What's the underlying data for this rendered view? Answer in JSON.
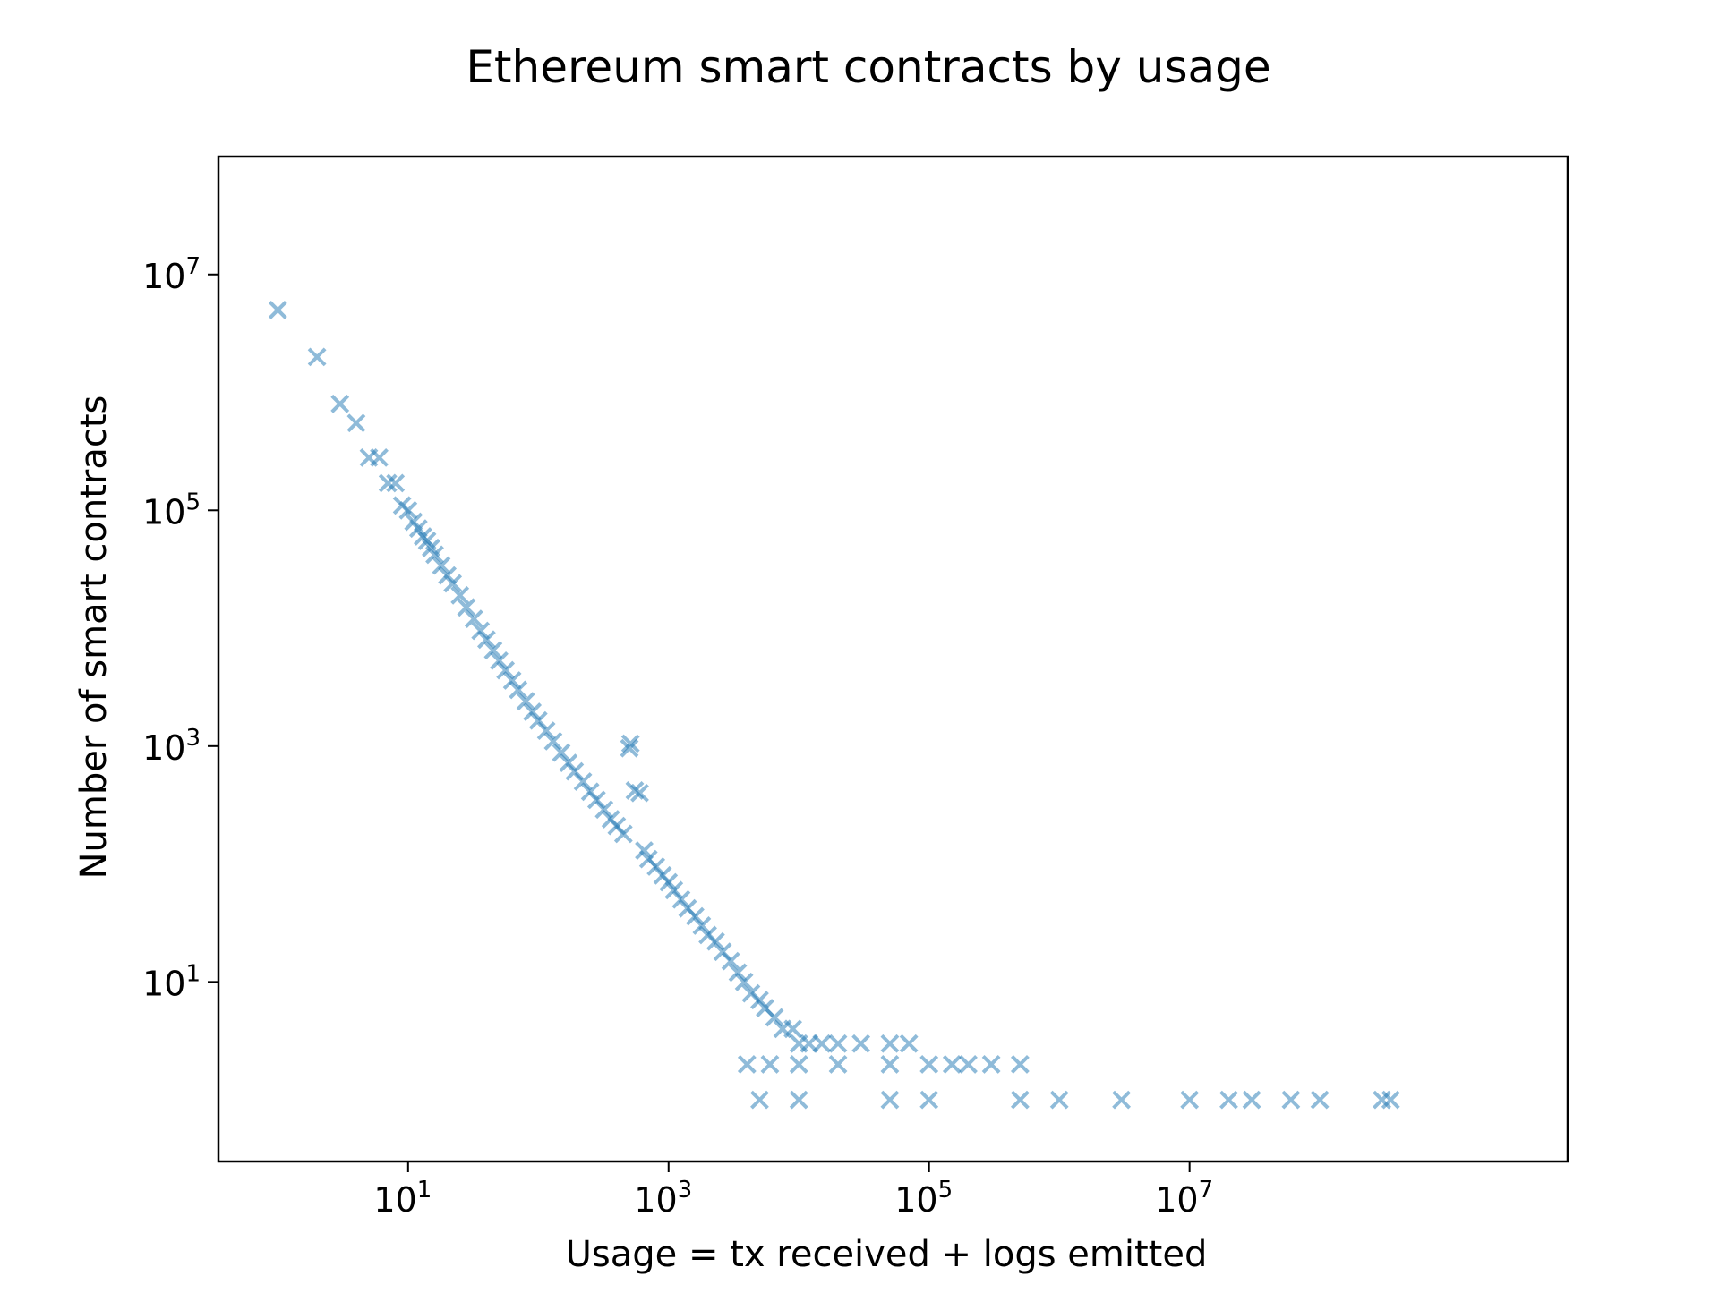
{
  "chart_data": {
    "type": "scatter",
    "title": "Ethereum smart contracts by usage",
    "xlabel": "Usage = tx received + logs emitted",
    "ylabel": "Number of smart contracts",
    "x_scale": "log",
    "y_scale": "log",
    "x_ticks": [
      {
        "base": "10",
        "exp": "1",
        "value": 10
      },
      {
        "base": "10",
        "exp": "3",
        "value": 1000
      },
      {
        "base": "10",
        "exp": "5",
        "value": 100000
      },
      {
        "base": "10",
        "exp": "7",
        "value": 10000000
      }
    ],
    "y_ticks": [
      {
        "base": "10",
        "exp": "1",
        "value": 10
      },
      {
        "base": "10",
        "exp": "3",
        "value": 1000
      },
      {
        "base": "10",
        "exp": "5",
        "value": 100000
      },
      {
        "base": "10",
        "exp": "7",
        "value": 10000000
      }
    ],
    "xlim": [
      0.35,
      8000000000
    ],
    "ylim": [
      0.3,
      100000000
    ],
    "grid": false,
    "marker": "x",
    "color": "#1f77b4",
    "series": [
      {
        "points": [
          [
            1,
            5000000
          ],
          [
            2,
            2000000
          ],
          [
            3,
            800000
          ],
          [
            4,
            550000
          ],
          [
            5,
            280000
          ],
          [
            6,
            280000
          ],
          [
            7,
            170000
          ],
          [
            8,
            170000
          ],
          [
            9,
            110000
          ],
          [
            10,
            100000
          ],
          [
            11,
            80000
          ],
          [
            12,
            70000
          ],
          [
            13,
            60000
          ],
          [
            14,
            55000
          ],
          [
            15,
            48000
          ],
          [
            16,
            42000
          ],
          [
            18,
            34000
          ],
          [
            20,
            28000
          ],
          [
            22,
            24000
          ],
          [
            25,
            19000
          ],
          [
            28,
            15000
          ],
          [
            32,
            12000
          ],
          [
            36,
            9500
          ],
          [
            40,
            8000
          ],
          [
            45,
            6500
          ],
          [
            50,
            5300
          ],
          [
            56,
            4400
          ],
          [
            63,
            3600
          ],
          [
            70,
            3000
          ],
          [
            80,
            2400
          ],
          [
            90,
            1950
          ],
          [
            100,
            1650
          ],
          [
            115,
            1350
          ],
          [
            130,
            1100
          ],
          [
            150,
            880
          ],
          [
            170,
            720
          ],
          [
            190,
            610
          ],
          [
            220,
            500
          ],
          [
            250,
            410
          ],
          [
            280,
            350
          ],
          [
            320,
            290
          ],
          [
            360,
            240
          ],
          [
            400,
            210
          ],
          [
            450,
            180
          ],
          [
            500,
            960
          ],
          [
            510,
            1050
          ],
          [
            550,
            420
          ],
          [
            600,
            400
          ],
          [
            650,
            130
          ],
          [
            700,
            110
          ],
          [
            800,
            95
          ],
          [
            900,
            80
          ],
          [
            1000,
            70
          ],
          [
            1100,
            60
          ],
          [
            1250,
            50
          ],
          [
            1400,
            42
          ],
          [
            1600,
            36
          ],
          [
            1800,
            30
          ],
          [
            2000,
            25
          ],
          [
            2300,
            22
          ],
          [
            2600,
            18
          ],
          [
            3000,
            15
          ],
          [
            3400,
            12
          ],
          [
            3800,
            10
          ],
          [
            4300,
            8
          ],
          [
            5000,
            7
          ],
          [
            5500,
            6
          ],
          [
            6500,
            5
          ],
          [
            7500,
            4
          ],
          [
            9000,
            4
          ],
          [
            10000,
            3
          ],
          [
            12000,
            3
          ],
          [
            15000,
            3
          ],
          [
            20000,
            3
          ],
          [
            30000,
            3
          ],
          [
            50000,
            3
          ],
          [
            70000,
            3
          ],
          [
            4000,
            2
          ],
          [
            6000,
            2
          ],
          [
            10000,
            2
          ],
          [
            20000,
            2
          ],
          [
            50000,
            2
          ],
          [
            100000,
            2
          ],
          [
            150000,
            2
          ],
          [
            200000,
            2
          ],
          [
            300000,
            2
          ],
          [
            500000,
            2
          ],
          [
            5000,
            1
          ],
          [
            10000,
            1
          ],
          [
            50000,
            1
          ],
          [
            100000,
            1
          ],
          [
            500000,
            1
          ],
          [
            1000000,
            1
          ],
          [
            3000000,
            1
          ],
          [
            10000000,
            1
          ],
          [
            20000000,
            1
          ],
          [
            30000000,
            1
          ],
          [
            60000000,
            1
          ],
          [
            100000000,
            1
          ],
          [
            300000000,
            1
          ],
          [
            350000000,
            1
          ]
        ]
      }
    ]
  }
}
